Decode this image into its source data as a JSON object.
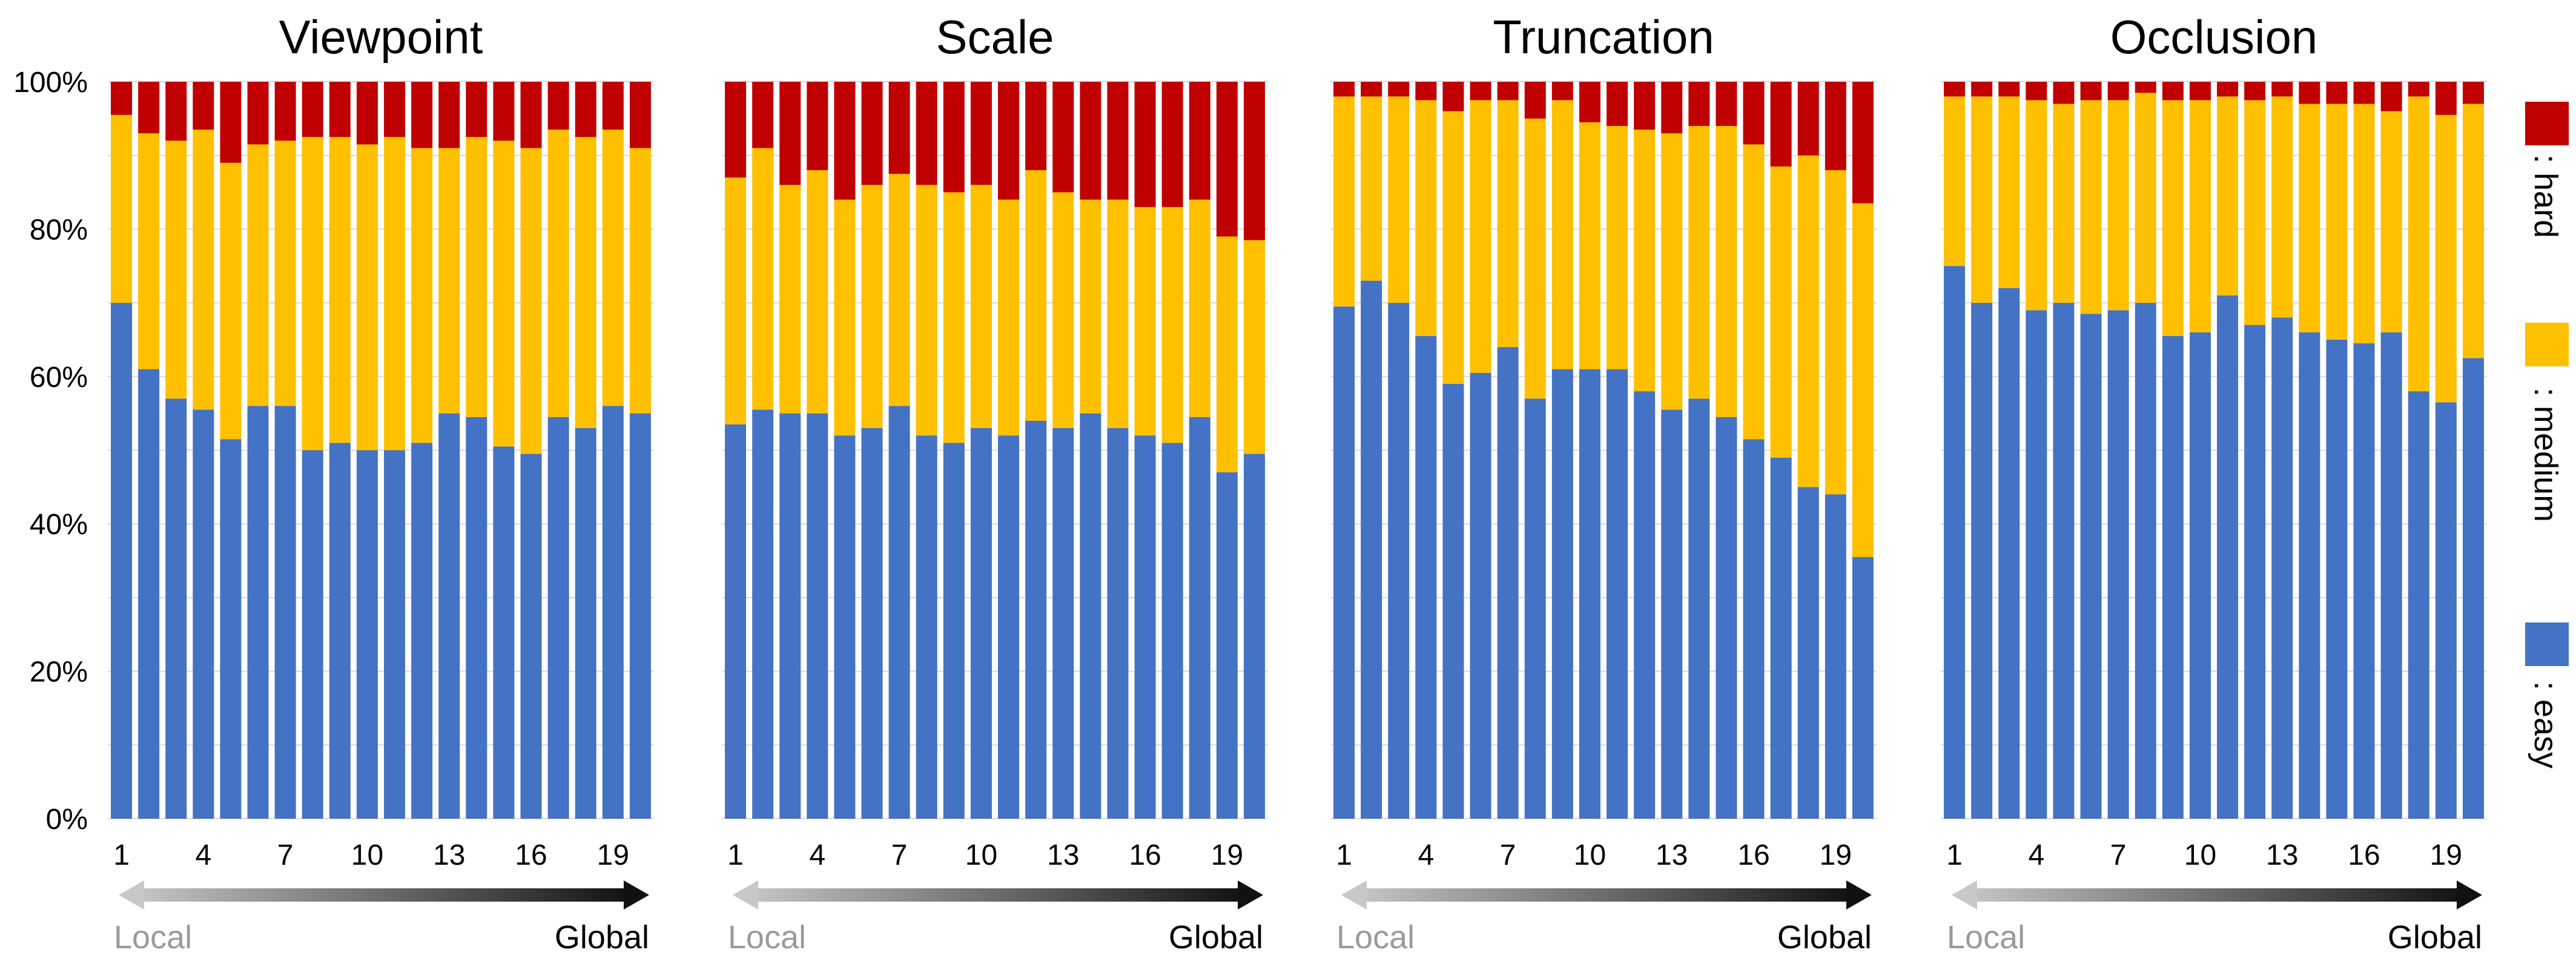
{
  "chart_data": [
    {
      "type": "bar",
      "stacked": true,
      "title": "Viewpoint",
      "x": [
        1,
        2,
        3,
        4,
        5,
        6,
        7,
        8,
        9,
        10,
        11,
        12,
        13,
        14,
        15,
        16,
        17,
        18,
        19,
        20
      ],
      "xticks": [
        "1",
        "4",
        "7",
        "10",
        "13",
        "16",
        "19"
      ],
      "yticks": [
        "0%",
        "20%",
        "40%",
        "60%",
        "80%",
        "100%"
      ],
      "ylim": [
        0,
        100
      ],
      "series": [
        {
          "name": "easy",
          "color": "#4472C4",
          "values": [
            70,
            61,
            57,
            55.5,
            51.5,
            56,
            56,
            50,
            51,
            50,
            50,
            51,
            55,
            54.5,
            50.5,
            49.5,
            54.5,
            53,
            56,
            55
          ]
        },
        {
          "name": "medium",
          "color": "#FFC000",
          "values": [
            25.5,
            32,
            35,
            38,
            37.5,
            35.5,
            36,
            42.5,
            41.5,
            41.5,
            42.5,
            40,
            36,
            38,
            41.5,
            41.5,
            39,
            39.5,
            37.5,
            36
          ]
        },
        {
          "name": "hard",
          "color": "#C00000",
          "values": [
            4.5,
            7,
            8,
            6.5,
            11,
            8.5,
            8,
            7.5,
            7.5,
            8.5,
            7.5,
            9,
            9,
            7.5,
            8,
            9,
            6.5,
            7.5,
            6.5,
            9
          ]
        }
      ],
      "arrow": {
        "left_label": "Local",
        "right_label": "Global"
      }
    },
    {
      "type": "bar",
      "stacked": true,
      "title": "Scale",
      "x": [
        1,
        2,
        3,
        4,
        5,
        6,
        7,
        8,
        9,
        10,
        11,
        12,
        13,
        14,
        15,
        16,
        17,
        18,
        19,
        20
      ],
      "xticks": [
        "1",
        "4",
        "7",
        "10",
        "13",
        "16",
        "19"
      ],
      "ylim": [
        0,
        100
      ],
      "series": [
        {
          "name": "easy",
          "color": "#4472C4",
          "values": [
            53.5,
            55.5,
            55,
            55,
            52,
            53,
            56,
            52,
            51,
            53,
            52,
            54,
            53,
            55,
            53,
            52,
            51,
            54.5,
            47,
            49.5
          ]
        },
        {
          "name": "medium",
          "color": "#FFC000",
          "values": [
            33.5,
            35.5,
            31,
            33,
            32,
            33,
            31.5,
            34,
            34,
            33,
            32,
            34,
            32,
            29,
            31,
            31,
            32,
            29.5,
            32,
            29
          ]
        },
        {
          "name": "hard",
          "color": "#C00000",
          "values": [
            13,
            9,
            14,
            12,
            16,
            14,
            12.5,
            14,
            15,
            14,
            16,
            12,
            15,
            16,
            16,
            17,
            17,
            16,
            21,
            21.5
          ]
        }
      ],
      "arrow": {
        "left_label": "Local",
        "right_label": "Global"
      }
    },
    {
      "type": "bar",
      "stacked": true,
      "title": "Truncation",
      "x": [
        1,
        2,
        3,
        4,
        5,
        6,
        7,
        8,
        9,
        10,
        11,
        12,
        13,
        14,
        15,
        16,
        17,
        18,
        19,
        20
      ],
      "xticks": [
        "1",
        "4",
        "7",
        "10",
        "13",
        "16",
        "19"
      ],
      "ylim": [
        0,
        100
      ],
      "series": [
        {
          "name": "easy",
          "color": "#4472C4",
          "values": [
            69.5,
            73,
            70,
            65.5,
            59,
            60.5,
            64,
            57,
            61,
            61,
            61,
            58,
            55.5,
            57,
            54.5,
            51.5,
            49,
            45,
            44,
            35.5
          ]
        },
        {
          "name": "medium",
          "color": "#FFC000",
          "values": [
            28.5,
            25,
            28,
            32,
            37,
            37,
            33.5,
            38,
            36.5,
            33.5,
            33,
            35.5,
            37.5,
            37,
            39.5,
            40,
            39.5,
            45,
            44,
            48
          ]
        },
        {
          "name": "hard",
          "color": "#C00000",
          "values": [
            2,
            2,
            2,
            2.5,
            4,
            2.5,
            2.5,
            5,
            2.5,
            5.5,
            6,
            6.5,
            7,
            6,
            6,
            8.5,
            11.5,
            10,
            12,
            16.5
          ]
        }
      ],
      "arrow": {
        "left_label": "Local",
        "right_label": "Global"
      }
    },
    {
      "type": "bar",
      "stacked": true,
      "title": "Occlusion",
      "x": [
        1,
        2,
        3,
        4,
        5,
        6,
        7,
        8,
        9,
        10,
        11,
        12,
        13,
        14,
        15,
        16,
        17,
        18,
        19,
        20
      ],
      "xticks": [
        "1",
        "4",
        "7",
        "10",
        "13",
        "16",
        "19"
      ],
      "ylim": [
        0,
        100
      ],
      "series": [
        {
          "name": "easy",
          "color": "#4472C4",
          "values": [
            75,
            70,
            72,
            69,
            70,
            68.5,
            69,
            70,
            65.5,
            66,
            71,
            67,
            68,
            66,
            65,
            64.5,
            66,
            58,
            56.5,
            62.5
          ]
        },
        {
          "name": "medium",
          "color": "#FFC000",
          "values": [
            23,
            28,
            26,
            28.5,
            27,
            29,
            28.5,
            28.5,
            32,
            31.5,
            27,
            30.5,
            30,
            31,
            32,
            32.5,
            30,
            40,
            39,
            34.5
          ]
        },
        {
          "name": "hard",
          "color": "#C00000",
          "values": [
            2,
            2,
            2,
            2.5,
            3,
            2.5,
            2.5,
            1.5,
            2.5,
            2.5,
            2,
            2.5,
            2,
            3,
            3,
            3,
            4,
            2,
            4.5,
            3
          ]
        }
      ],
      "arrow": {
        "left_label": "Local",
        "right_label": "Global"
      }
    }
  ],
  "legend": [
    {
      "key": "hard",
      "label": ": hard",
      "color": "#C00000"
    },
    {
      "key": "medium",
      "label": ": medium",
      "color": "#FFC000"
    },
    {
      "key": "easy",
      "label": ": easy",
      "color": "#4472C4"
    }
  ]
}
